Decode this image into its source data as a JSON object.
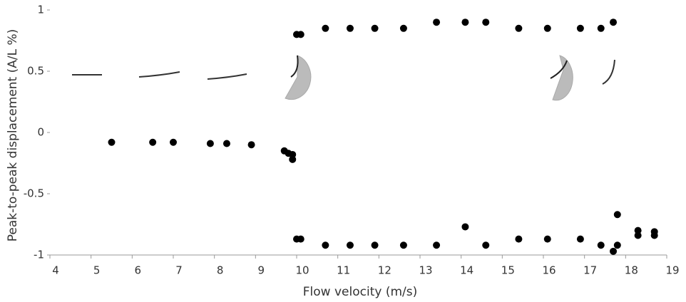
{
  "chart_data": {
    "type": "scatter",
    "xlabel": "Flow velocity  (m/s)",
    "ylabel": "Peak-to-peak   displacement  (A/L %)",
    "xlim": [
      4,
      19
    ],
    "xticks": [
      4,
      5,
      6,
      7,
      8,
      9,
      10,
      11,
      12,
      13,
      14,
      15,
      16,
      17,
      18,
      19
    ],
    "ylim": [
      -1,
      1
    ],
    "yticks": [
      1,
      0.5,
      0,
      -0.5,
      -1
    ],
    "color": "#000000",
    "x": [
      10.0,
      10.1,
      10.7,
      11.3,
      11.9,
      12.6,
      13.4,
      14.1,
      14.6,
      15.4,
      16.1,
      16.9,
      17.4,
      17.7,
      5.5,
      6.5,
      7.0,
      7.9,
      8.3,
      8.9,
      9.7,
      9.8,
      9.9,
      9.9,
      10.0,
      10.1,
      10.7,
      11.3,
      11.9,
      12.6,
      13.4,
      14.1,
      14.6,
      15.4,
      16.1,
      16.9,
      17.4,
      17.7,
      17.8,
      17.8,
      18.3,
      18.3,
      18.7,
      18.7
    ],
    "values": [
      0.8,
      0.8,
      0.85,
      0.85,
      0.85,
      0.85,
      0.9,
      0.9,
      0.9,
      0.85,
      0.85,
      0.85,
      0.85,
      0.9,
      -0.08,
      -0.08,
      -0.08,
      -0.09,
      -0.09,
      -0.1,
      -0.15,
      -0.17,
      -0.18,
      -0.22,
      -0.87,
      -0.87,
      -0.92,
      -0.92,
      -0.92,
      -0.92,
      -0.92,
      -0.77,
      -0.92,
      -0.87,
      -0.87,
      -0.87,
      -0.92,
      -0.97,
      -0.92,
      -0.67,
      -0.8,
      -0.84,
      -0.81,
      -0.84
    ]
  }
}
